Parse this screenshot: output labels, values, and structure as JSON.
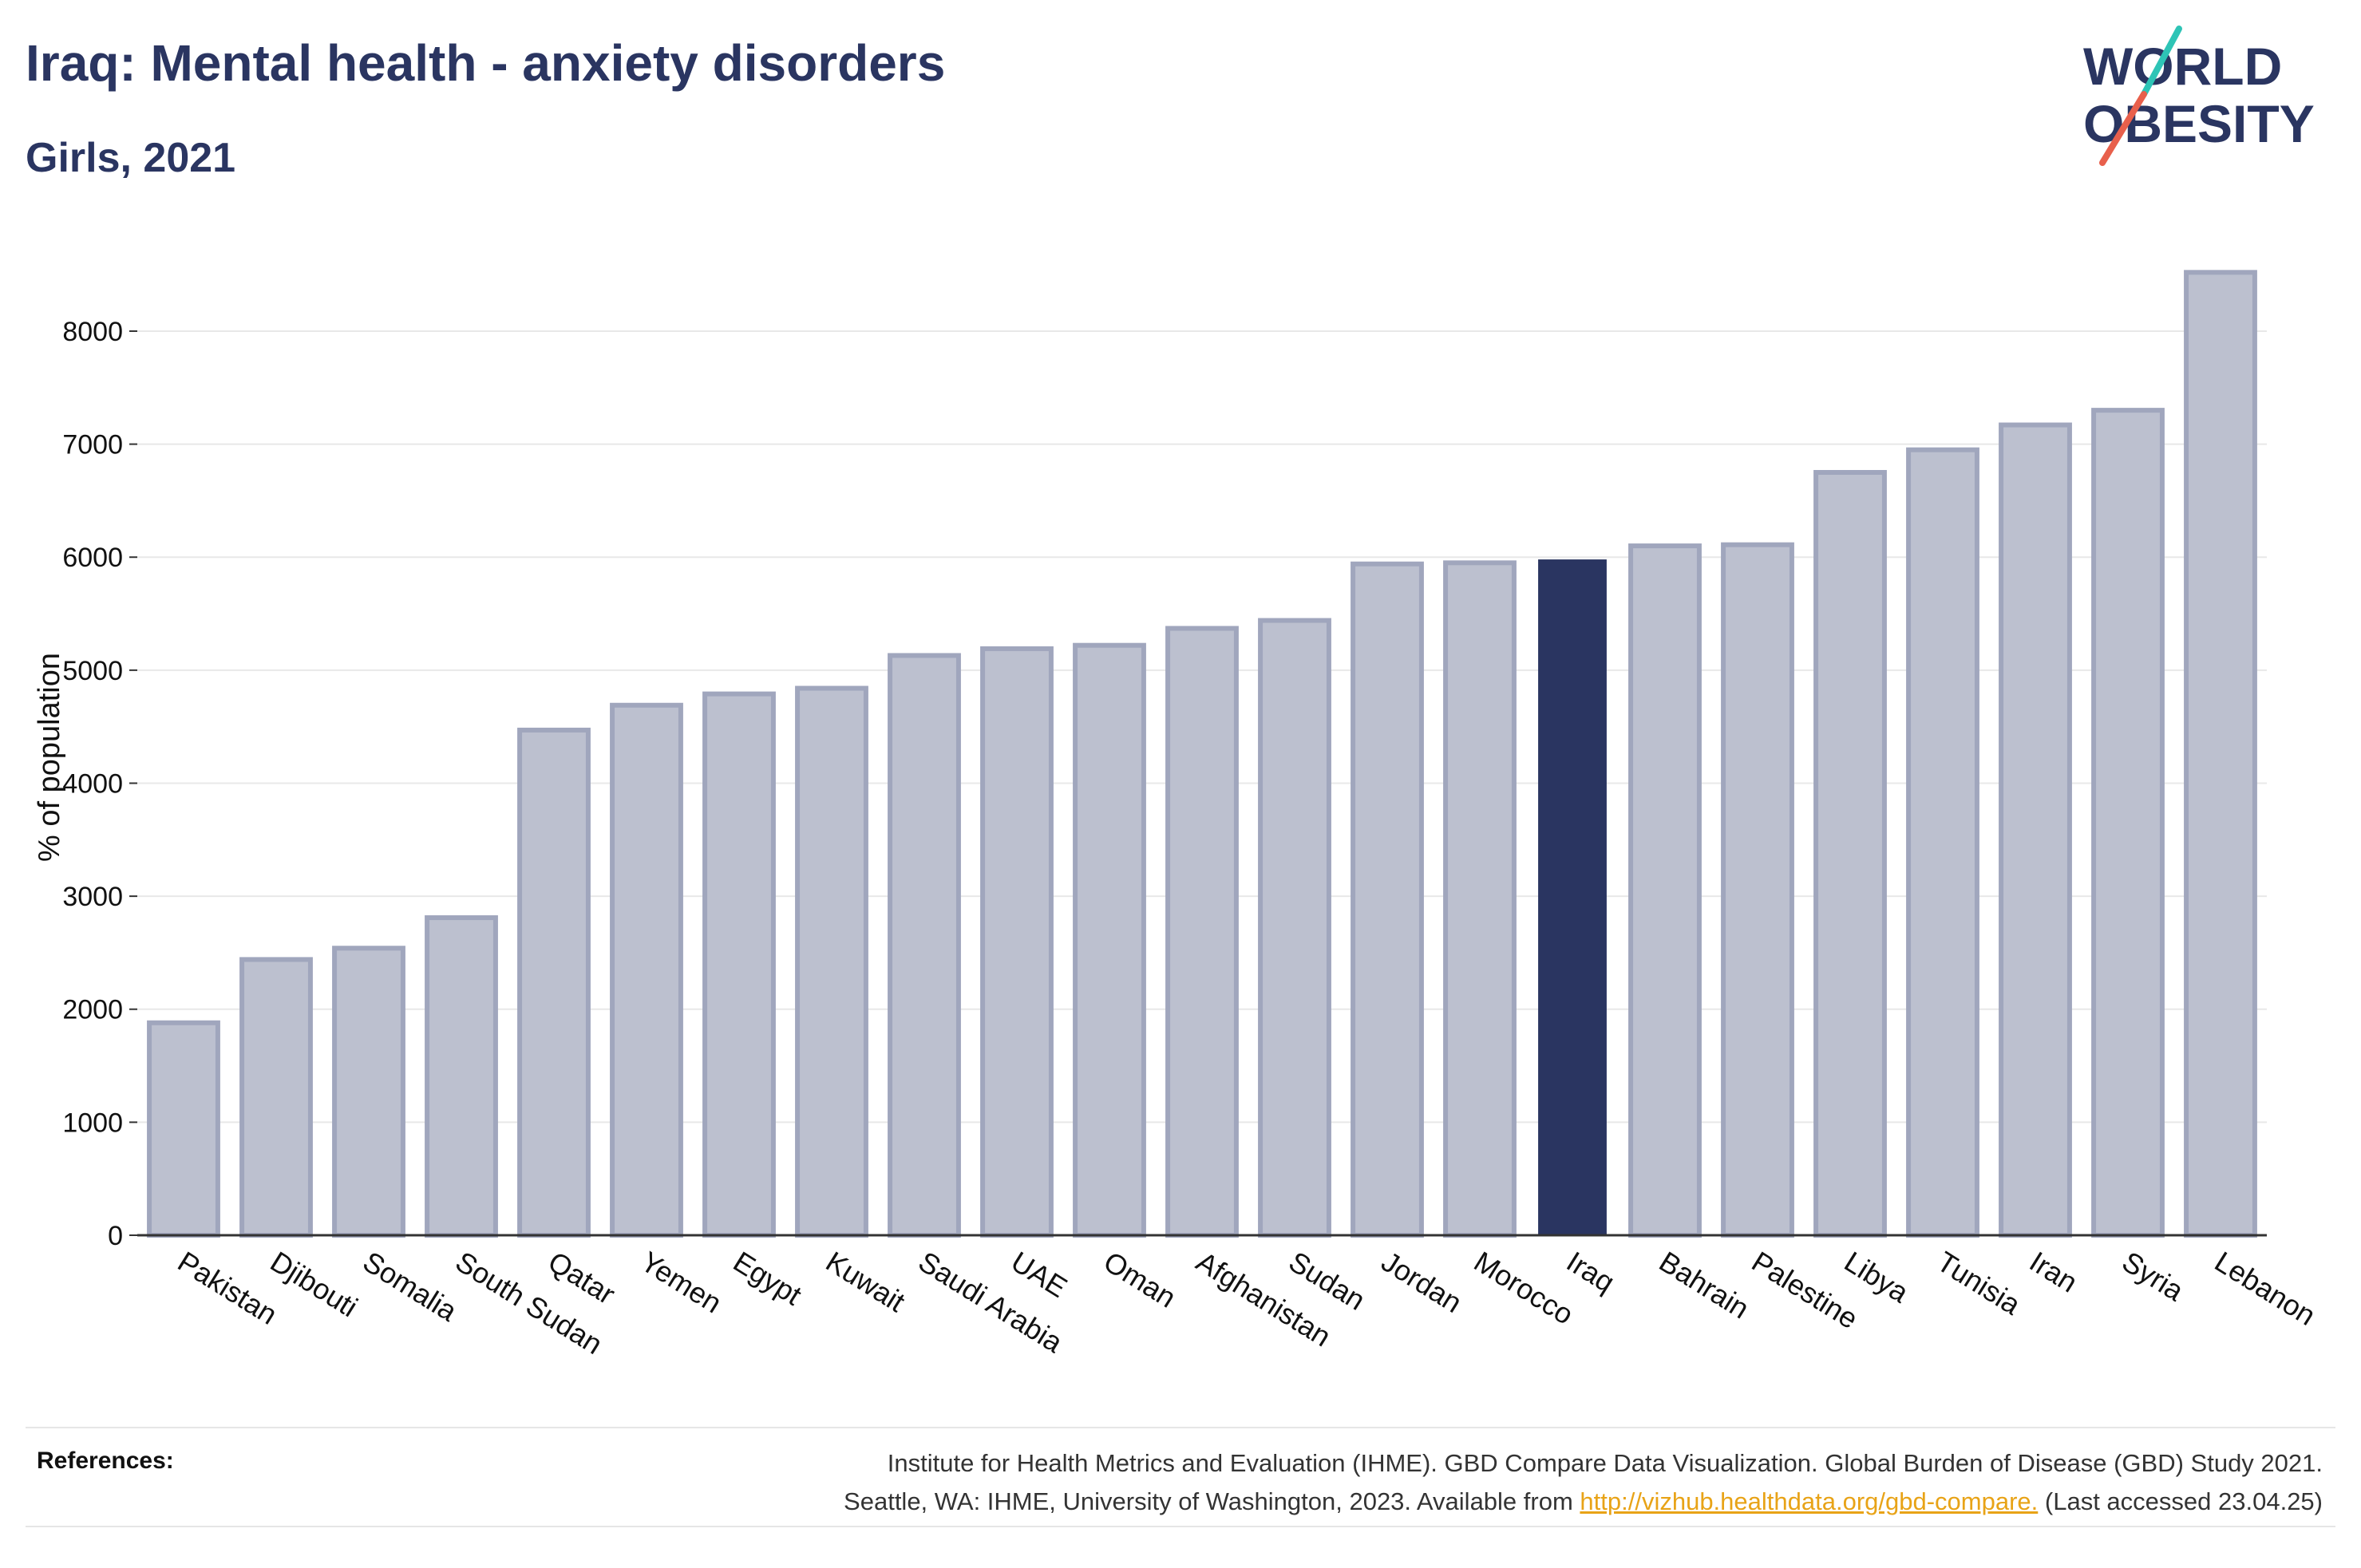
{
  "header": {
    "title": "Iraq: Mental health - anxiety disorders",
    "subtitle": "Girls, 2021"
  },
  "logo": {
    "line1": "WORLD",
    "line2": "OBESITY",
    "slash_colors": [
      "#2ec4b6",
      "#e8604c"
    ]
  },
  "chart_data": {
    "type": "bar",
    "title": "Iraq: Mental health - anxiety disorders",
    "subtitle": "Girls, 2021",
    "xlabel": "",
    "ylabel": "% of population",
    "ylim": [
      0,
      8600
    ],
    "yticks": [
      0,
      1000,
      2000,
      3000,
      4000,
      5000,
      6000,
      7000,
      8000
    ],
    "grid": true,
    "highlight": "Iraq",
    "colors": {
      "bar": "#bcc0cf",
      "bar_edge": "#a0a6bd",
      "highlight": "#2a3561"
    },
    "categories": [
      "Pakistan",
      "Djibouti",
      "Somalia",
      "South Sudan",
      "Qatar",
      "Yemen",
      "Egypt",
      "Kuwait",
      "Saudi Arabia",
      "UAE",
      "Oman",
      "Afghanistan",
      "Sudan",
      "Jordan",
      "Morocco",
      "Iraq",
      "Bahrain",
      "Palestine",
      "Libya",
      "Tunisia",
      "Iran",
      "Syria",
      "Lebanon"
    ],
    "values": [
      1880,
      2440,
      2540,
      2810,
      4470,
      4690,
      4790,
      4840,
      5130,
      5190,
      5220,
      5370,
      5440,
      5940,
      5950,
      5980,
      6100,
      6110,
      6750,
      6950,
      7170,
      7300,
      8520
    ]
  },
  "references": {
    "label": "References:",
    "line1": "Institute for Health Metrics and Evaluation (IHME). GBD Compare Data Visualization. Global Burden of Disease (GBD) Study 2021.",
    "line2_pre": "Seattle, WA: IHME, University of Washington, 2023. Available from ",
    "link_text": "http://vizhub.healthdata.org/gbd-compare.",
    "line2_post": " (Last accessed 23.04.25)"
  }
}
